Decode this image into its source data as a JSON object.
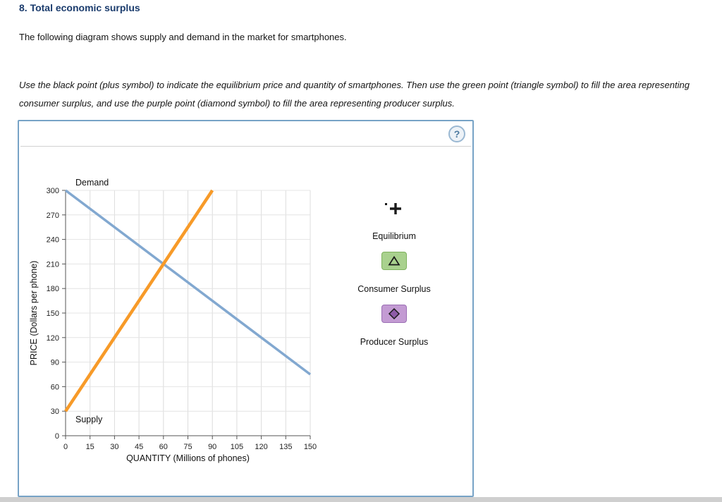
{
  "page": {
    "title": "8. Total economic surplus",
    "intro": "The following diagram shows supply and demand in the market for smartphones.",
    "instructions": "Use the black point (plus symbol) to indicate the equilibrium price and quantity of smartphones. Then use the green point (triangle symbol) to fill the area representing consumer surplus, and use the purple point (diamond symbol) to fill the area representing producer surplus."
  },
  "panel": {
    "help_label": "?"
  },
  "legend": {
    "items": [
      {
        "tool": "equilibrium-point",
        "symbol": "plus-icon",
        "label": "Equilibrium",
        "symbol_color": "#1a1a1a"
      },
      {
        "tool": "consumer-surplus",
        "symbol": "triangle-icon",
        "label": "Consumer Surplus",
        "box_bg": "#a9d18e",
        "box_border": "#7fb25e"
      },
      {
        "tool": "producer-surplus",
        "symbol": "diamond-icon",
        "label": "Producer Surplus",
        "box_bg": "#c39bd3",
        "box_border": "#9b6fb5"
      }
    ]
  },
  "chart_data": {
    "type": "line",
    "title": "",
    "xlabel": "QUANTITY (Millions of phones)",
    "ylabel": "PRICE (Dollars per phone)",
    "xlim": [
      0,
      150
    ],
    "ylim": [
      0,
      300
    ],
    "xticks": [
      0,
      15,
      30,
      45,
      60,
      75,
      90,
      105,
      120,
      135,
      150
    ],
    "yticks": [
      0,
      30,
      60,
      90,
      120,
      150,
      180,
      210,
      240,
      270,
      300
    ],
    "grid": true,
    "legend_position": "right",
    "series": [
      {
        "name": "Demand",
        "color": "#82a8d0",
        "width": 3.5,
        "points": [
          [
            0,
            300
          ],
          [
            150,
            75
          ]
        ],
        "label_pos": "above-start"
      },
      {
        "name": "Supply",
        "color": "#f79a28",
        "width": 4.5,
        "points": [
          [
            0,
            30
          ],
          [
            90,
            300
          ]
        ],
        "label_pos": "below-start"
      }
    ],
    "equilibrium": {
      "quantity": 60,
      "price": 210
    }
  }
}
